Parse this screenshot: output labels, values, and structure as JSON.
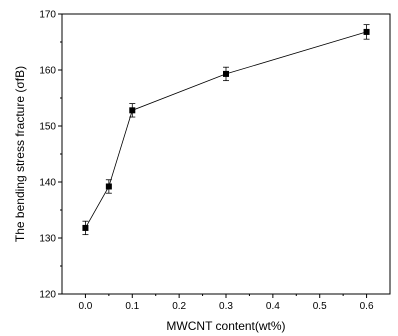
{
  "chart_data": {
    "type": "line",
    "title": "",
    "xlabel": "MWCNT content(wt%)",
    "ylabel": "The bending stress fracture (σfB)",
    "xlim": [
      -0.05,
      0.65
    ],
    "ylim": [
      120,
      170
    ],
    "x_ticks": [
      0.0,
      0.1,
      0.2,
      0.3,
      0.4,
      0.5,
      0.6
    ],
    "x_tick_labels": [
      "0.0",
      "0.1",
      "0.2",
      "0.3",
      "0.4",
      "0.5",
      "0.6"
    ],
    "y_ticks": [
      120,
      130,
      140,
      150,
      160,
      170
    ],
    "y_tick_labels": [
      "120",
      "130",
      "140",
      "150",
      "160",
      "170"
    ],
    "grid": false,
    "marker": "square",
    "series": [
      {
        "x": [
          0.0,
          0.05,
          0.1,
          0.3,
          0.6
        ],
        "values": [
          131.8,
          139.2,
          152.8,
          159.3,
          166.8
        ],
        "error": [
          1.2,
          1.2,
          1.2,
          1.2,
          1.3
        ]
      }
    ]
  }
}
